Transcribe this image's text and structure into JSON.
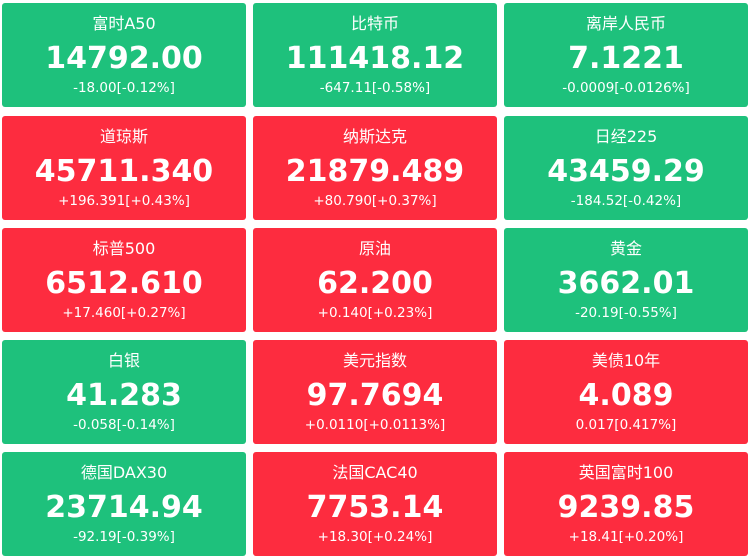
{
  "tiles": [
    {
      "name": "富时A50",
      "price": "14792.00",
      "change": "-18.00[-0.12%]",
      "color": "#1ec17c"
    },
    {
      "name": "比特币",
      "price": "111418.12",
      "change": "-647.11[-0.58%]",
      "color": "#1ec17c"
    },
    {
      "name": "离岸人民币",
      "price": "7.1221",
      "change": "-0.0009[-0.0126%]",
      "color": "#1ec17c"
    },
    {
      "name": "道琼斯",
      "price": "45711.340",
      "change": "+196.391[+0.43%]",
      "color": "#fd2c3f"
    },
    {
      "name": "纳斯达克",
      "price": "21879.489",
      "change": "+80.790[+0.37%]",
      "color": "#fd2c3f"
    },
    {
      "name": "日经225",
      "price": "43459.29",
      "change": "-184.52[-0.42%]",
      "color": "#1ec17c"
    },
    {
      "name": "标普500",
      "price": "6512.610",
      "change": "+17.460[+0.27%]",
      "color": "#fd2c3f"
    },
    {
      "name": "原油",
      "price": "62.200",
      "change": "+0.140[+0.23%]",
      "color": "#fd2c3f"
    },
    {
      "name": "黄金",
      "price": "3662.01",
      "change": "-20.19[-0.55%]",
      "color": "#1ec17c"
    },
    {
      "name": "白银",
      "price": "41.283",
      "change": "-0.058[-0.14%]",
      "color": "#1ec17c"
    },
    {
      "name": "美元指数",
      "price": "97.7694",
      "change": "+0.0110[+0.0113%]",
      "color": "#fd2c3f"
    },
    {
      "name": "美债10年",
      "price": "4.089",
      "change": "0.017[0.417%]",
      "color": "#fd2c3f"
    },
    {
      "name": "德国DAX30",
      "price": "23714.94",
      "change": "-92.19[-0.39%]",
      "color": "#1ec17c"
    },
    {
      "name": "法国CAC40",
      "price": "7753.14",
      "change": "+18.30[+0.24%]",
      "color": "#fd2c3f"
    },
    {
      "name": "英国富时100",
      "price": "9239.85",
      "change": "+18.41[+0.20%]",
      "color": "#fd2c3f"
    }
  ]
}
